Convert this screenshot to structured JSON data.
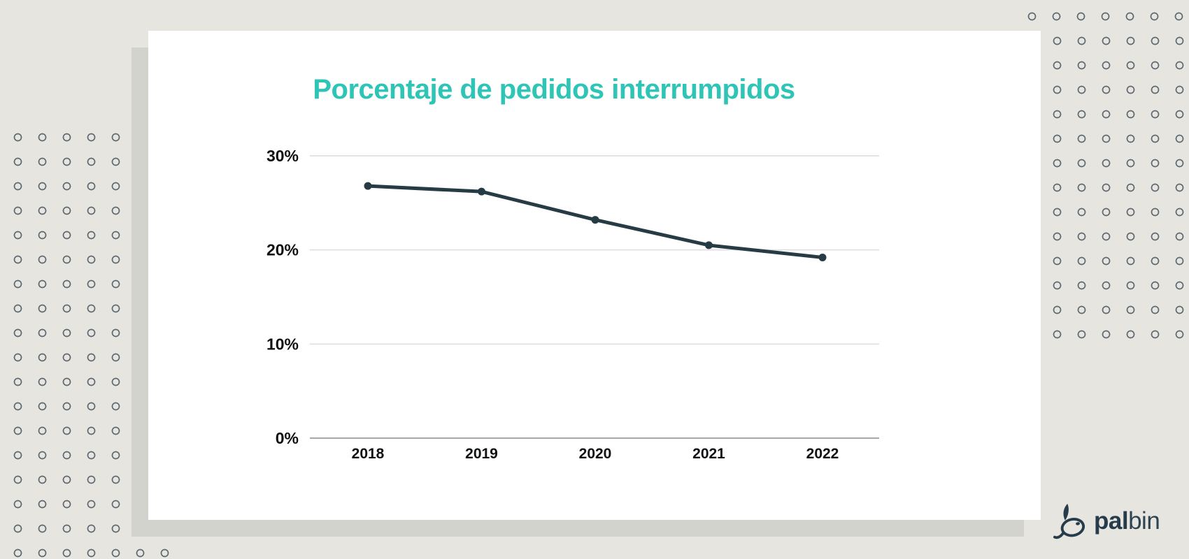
{
  "page": {
    "background_color": "#e6e5e0",
    "card_color": "#ffffff",
    "card_shadow_color": "#d3d3ce",
    "dot_ring_color": "rgba(43,60,72,0.72)"
  },
  "chart_data": {
    "type": "line",
    "title": "Porcentaje de pedidos interrumpidos",
    "title_color": "#2ec4b6",
    "categories": [
      "2018",
      "2019",
      "2020",
      "2021",
      "2022"
    ],
    "values": [
      26.8,
      26.2,
      23.2,
      20.5,
      19.2
    ],
    "yticks": {
      "values": [
        0,
        10,
        20,
        30
      ],
      "labels": [
        "0%",
        "10%",
        "20%",
        "30%"
      ]
    },
    "ylim": [
      0,
      33
    ],
    "xlabel": "",
    "ylabel": "",
    "grid": true,
    "legend": false,
    "line_color": "#273b45",
    "marker": "circle",
    "gridline_color": "#dcdcdc",
    "axis_line_color": "#a8a8a8",
    "tick_label_color": "#101113"
  },
  "logo": {
    "name": "palbin",
    "text_bold": "pal",
    "text_light": "bin",
    "color": "#263c4a",
    "icon": "fish-icon"
  }
}
